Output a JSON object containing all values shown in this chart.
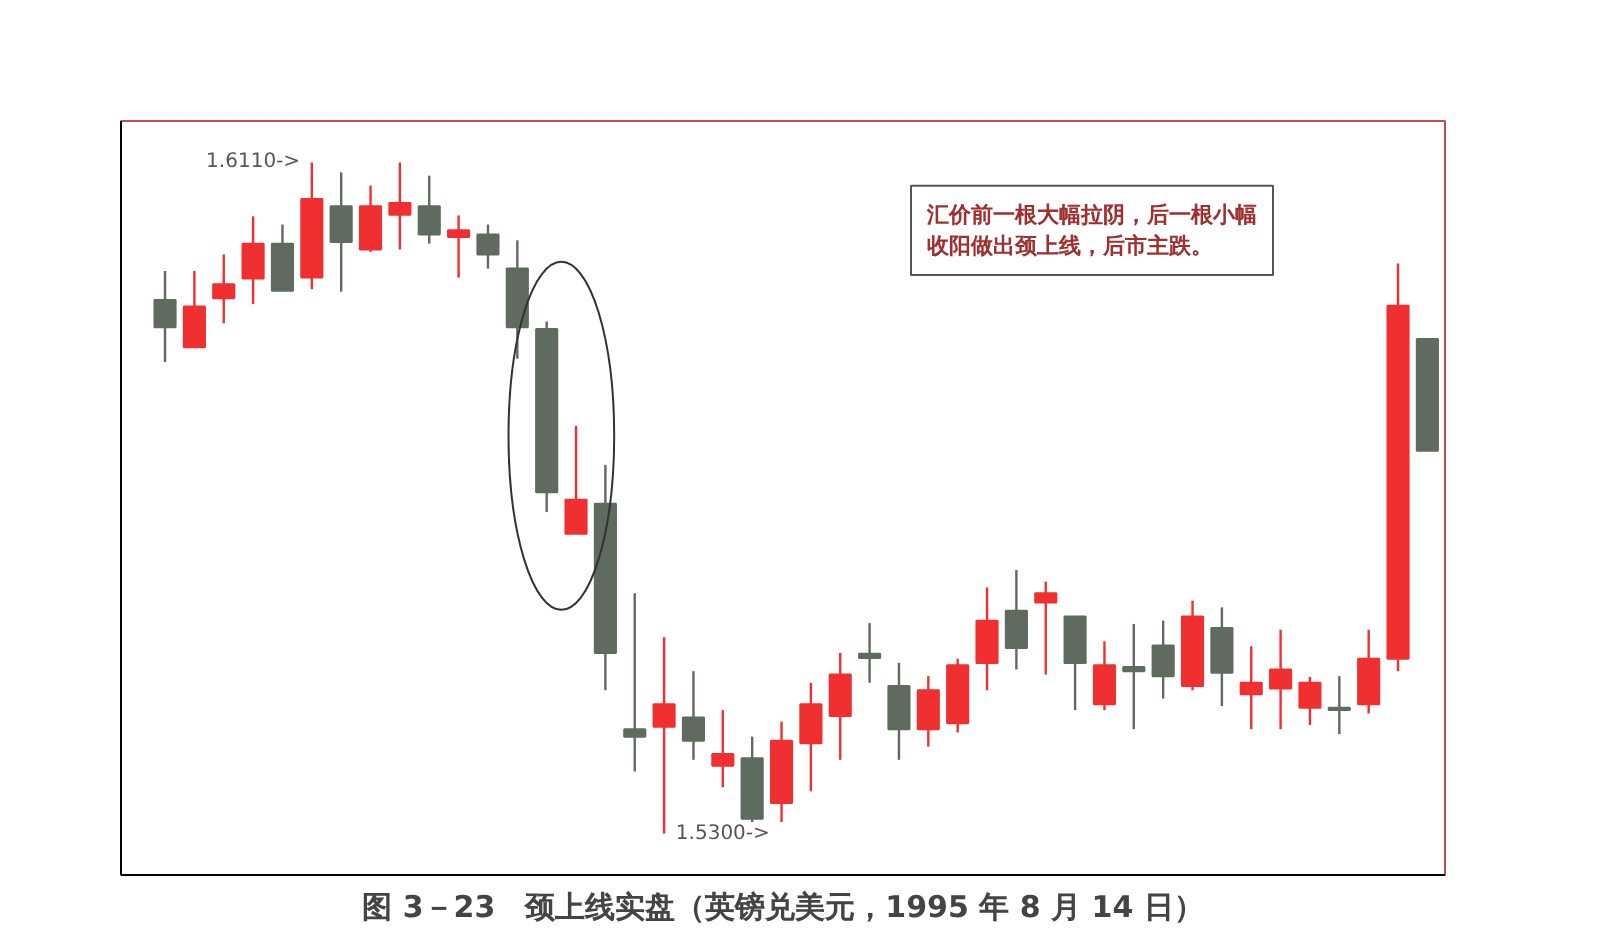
{
  "chart_data": {
    "type": "candlestick",
    "title": "图 3－23　颈上线实盘（英镑兑美元，1995 年 8 月 14 日）",
    "categories": [
      null,
      null,
      null,
      null,
      null,
      null,
      null,
      null,
      null,
      null,
      null,
      null,
      null,
      null,
      null,
      null,
      null,
      null,
      null,
      null,
      null,
      null,
      null,
      null,
      null,
      null,
      null,
      null,
      null,
      null,
      null,
      null,
      null,
      null,
      null,
      null,
      null,
      null,
      null,
      null,
      null,
      null,
      null,
      null
    ],
    "ohlc": [
      [
        1.5944,
        1.5979,
        1.5869,
        1.5911
      ],
      [
        1.5887,
        1.5979,
        1.5887,
        1.5936
      ],
      [
        1.5946,
        1.5999,
        1.5916,
        1.5963
      ],
      [
        1.597,
        1.6045,
        1.5939,
        1.6012
      ],
      [
        1.6012,
        1.6035,
        1.5955,
        1.5955
      ],
      [
        1.5971,
        1.611,
        1.5957,
        1.6066
      ],
      [
        1.6057,
        1.6098,
        1.5954,
        1.6014
      ],
      [
        1.6005,
        1.6082,
        1.6002,
        1.6057
      ],
      [
        1.6047,
        1.611,
        1.6005,
        1.6061
      ],
      [
        1.6057,
        1.6094,
        1.6012,
        1.6023
      ],
      [
        1.602,
        1.6046,
        1.5971,
        1.6028
      ],
      [
        1.6023,
        1.6035,
        1.5982,
        1.5999
      ],
      [
        1.5982,
        1.6016,
        1.5873,
        1.5911
      ],
      [
        1.5909,
        1.5918,
        1.5688,
        1.5712
      ],
      [
        1.5662,
        1.5792,
        1.5662,
        1.5703
      ],
      [
        1.5698,
        1.5745,
        1.5473,
        1.5518
      ],
      [
        1.5426,
        1.559,
        1.5375,
        1.5417
      ],
      [
        1.5429,
        1.5537,
        1.53,
        1.5456
      ],
      [
        1.544,
        1.5496,
        1.5389,
        1.5412
      ],
      [
        1.5382,
        1.5449,
        1.5356,
        1.5396
      ],
      [
        1.5391,
        1.5417,
        1.5314,
        1.5318
      ],
      [
        1.5337,
        1.5435,
        1.5314,
        1.5412
      ],
      [
        1.5409,
        1.5482,
        1.5351,
        1.5456
      ],
      [
        1.5442,
        1.5518,
        1.5389,
        1.5492
      ],
      [
        1.5517,
        1.5554,
        1.5482,
        1.5512
      ],
      [
        1.5478,
        1.5506,
        1.5389,
        1.5426
      ],
      [
        1.5426,
        1.549,
        1.5405,
        1.5473
      ],
      [
        1.5433,
        1.5511,
        1.5422,
        1.5503
      ],
      [
        1.5506,
        1.5597,
        1.5473,
        1.5557
      ],
      [
        1.5569,
        1.5618,
        1.5498,
        1.5524
      ],
      [
        1.5579,
        1.5604,
        1.5492,
        1.559
      ],
      [
        1.5562,
        1.5562,
        1.5449,
        1.5506
      ],
      [
        1.5456,
        1.5532,
        1.5449,
        1.5503
      ],
      [
        1.5501,
        1.5553,
        1.5426,
        1.5496
      ],
      [
        1.5527,
        1.5557,
        1.5463,
        1.549
      ],
      [
        1.5478,
        1.5581,
        1.5473,
        1.5562
      ],
      [
        1.5548,
        1.5573,
        1.5454,
        1.5494
      ],
      [
        1.5468,
        1.5526,
        1.5426,
        1.5482
      ],
      [
        1.5475,
        1.5546,
        1.5426,
        1.5498
      ],
      [
        1.5452,
        1.5489,
        1.5431,
        1.5482
      ],
      [
        1.5452,
        1.549,
        1.542,
        1.5449
      ],
      [
        1.5456,
        1.5546,
        1.5445,
        1.5511
      ],
      [
        1.5511,
        1.5988,
        1.5496,
        1.5937
      ],
      [
        1.5897,
        1.5897,
        1.5762,
        1.5762
      ]
    ],
    "colors": [
      "#5f6b5f",
      "#f03030",
      "#f03030",
      "#f03030",
      "#5f6b5f",
      "#f03030",
      "#5f6b5f",
      "#f03030",
      "#f03030",
      "#5f6b5f",
      "#f03030",
      "#5f6b5f",
      "#5f6b5f",
      "#5f6b5f",
      "#f03030",
      "#5f6b5f",
      "#5f6b5f",
      "#f03030",
      "#5f6b5f",
      "#f03030",
      "#5f6b5f",
      "#f03030",
      "#f03030",
      "#f03030",
      "#5f6b5f",
      "#5f6b5f",
      "#f03030",
      "#f03030",
      "#f03030",
      "#5f6b5f",
      "#f03030",
      "#5f6b5f",
      "#f03030",
      "#5f6b5f",
      "#5f6b5f",
      "#f03030",
      "#5f6b5f",
      "#f03030",
      "#f03030",
      "#f03030",
      "#5f6b5f",
      "#f03030",
      "#f03030",
      "#5f6b5f"
    ],
    "ylim": [
      1.525,
      1.616
    ],
    "tick_labels": false,
    "annotations": [
      "汇价前一根大幅拉阴，后一根小幅收阳做出颈上线，后市主跌。",
      "1.6110->",
      "1.5300->"
    ]
  }
}
